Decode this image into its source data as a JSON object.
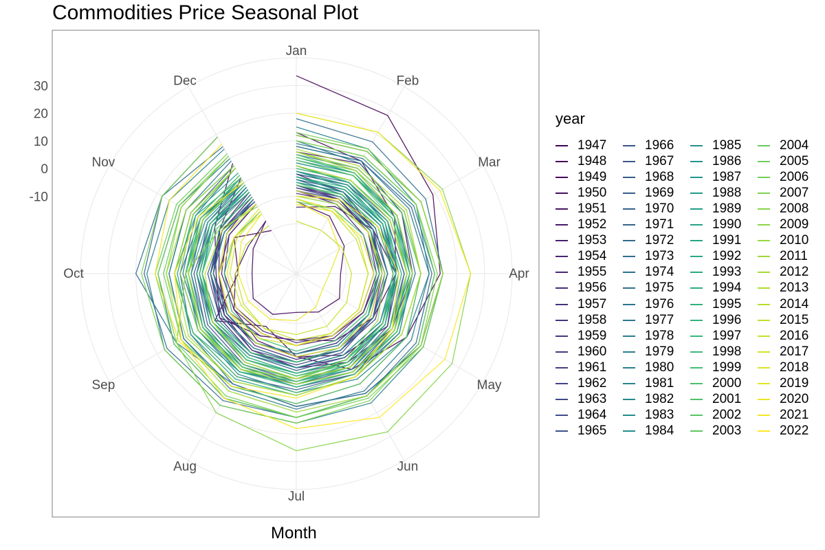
{
  "title": "Commodities Price Seasonal Plot",
  "chart_data": {
    "type": "line",
    "coordinate_system": "polar",
    "title": "Commodities Price Seasonal Plot",
    "xlabel": "Month",
    "ylabel": "",
    "months": [
      "Jan",
      "Feb",
      "Mar",
      "Apr",
      "May",
      "Jun",
      "Jul",
      "Aug",
      "Sep",
      "Oct",
      "Nov",
      "Dec"
    ],
    "radial_ticks": [
      "30",
      "20",
      "10",
      "0",
      "-10"
    ],
    "radial_tick_values": [
      30,
      20,
      10,
      0,
      -10
    ],
    "radial_range": [
      -38,
      42
    ],
    "grid": true,
    "legend_title": "year",
    "legend_position": "right",
    "color_scale": "viridis",
    "series": [
      {
        "name": "1947",
        "values": [
          33.5,
          28,
          19,
          14,
          8,
          2,
          -8,
          -16,
          -4,
          -17,
          -12,
          -20
        ]
      },
      {
        "name": "1948",
        "values": [
          13,
          9,
          3,
          -2,
          -6,
          -10,
          -14,
          -12,
          -6,
          -9,
          -4,
          8
        ]
      },
      {
        "name": "1949",
        "values": [
          -12,
          -14,
          -18,
          -22,
          -20,
          -22,
          -24,
          -21,
          -20,
          -22,
          -20,
          -16
        ]
      },
      {
        "name": "1950",
        "values": [
          -14,
          -10,
          -6,
          -2,
          0,
          -4,
          -8,
          -10,
          -12,
          -16,
          -18,
          -16
        ]
      },
      {
        "name": "1951",
        "values": [
          6,
          8,
          6,
          4,
          2,
          -1,
          -4,
          -6,
          -8,
          -10,
          -6,
          2
        ]
      },
      {
        "name": "1952",
        "values": [
          -2,
          -4,
          -6,
          -8,
          -10,
          -12,
          -14,
          -12,
          -10,
          -8,
          -6,
          -4
        ]
      },
      {
        "name": "1953",
        "values": [
          -6,
          -7,
          -8,
          -9,
          -10,
          -11,
          -12,
          -13,
          -12,
          -11,
          -9,
          -7
        ]
      },
      {
        "name": "1954",
        "values": [
          -8,
          -9,
          -10,
          -10,
          -11,
          -12,
          -13,
          -14,
          -13,
          -12,
          -10,
          -9
        ]
      },
      {
        "name": "1955",
        "values": [
          -9,
          -8,
          -7,
          -7,
          -6,
          -6,
          -7,
          -8,
          -9,
          -10,
          -10,
          -9
        ]
      },
      {
        "name": "1956",
        "values": [
          -5,
          -4,
          -3,
          -3,
          -2,
          -3,
          -4,
          -5,
          -6,
          -7,
          -6,
          -5
        ]
      },
      {
        "name": "1957",
        "values": [
          -4,
          -5,
          -6,
          -7,
          -8,
          -8,
          -9,
          -9,
          -8,
          -7,
          -6,
          -5
        ]
      },
      {
        "name": "1958",
        "values": [
          -7,
          -6,
          -6,
          -5,
          -6,
          -7,
          -8,
          -9,
          -9,
          -8,
          -8,
          -7
        ]
      },
      {
        "name": "1959",
        "values": [
          -6,
          -6,
          -5,
          -5,
          -5,
          -6,
          -6,
          -7,
          -7,
          -7,
          -7,
          -6
        ]
      },
      {
        "name": "1960",
        "values": [
          -6,
          -7,
          -7,
          -8,
          -8,
          -9,
          -9,
          -9,
          -9,
          -8,
          -7,
          -6
        ]
      },
      {
        "name": "1961",
        "values": [
          -8,
          -8,
          -7,
          -7,
          -7,
          -6,
          -6,
          -6,
          -7,
          -7,
          -8,
          -8
        ]
      },
      {
        "name": "1962",
        "values": [
          -7,
          -7,
          -8,
          -8,
          -8,
          -9,
          -9,
          -9,
          -8,
          -8,
          -7,
          -7
        ]
      },
      {
        "name": "1963",
        "values": [
          -8,
          -7,
          -7,
          -6,
          -6,
          -5,
          -5,
          -5,
          -6,
          -6,
          -7,
          -8
        ]
      },
      {
        "name": "1964",
        "values": [
          -4,
          -3,
          -2,
          -1,
          0,
          1,
          1,
          0,
          -1,
          -2,
          -3,
          -4
        ]
      },
      {
        "name": "1965",
        "values": [
          -2,
          -1,
          0,
          1,
          2,
          3,
          2,
          1,
          0,
          -1,
          -2,
          -2
        ]
      },
      {
        "name": "1966",
        "values": [
          2,
          3,
          4,
          4,
          5,
          4,
          3,
          2,
          1,
          0,
          1,
          2
        ]
      },
      {
        "name": "1967",
        "values": [
          1,
          0,
          -1,
          -2,
          -2,
          -3,
          -3,
          -4,
          -3,
          -2,
          -1,
          0
        ]
      },
      {
        "name": "1968",
        "values": [
          -3,
          -3,
          -2,
          -2,
          -1,
          -1,
          -2,
          -2,
          -3,
          -3,
          -3,
          -3
        ]
      },
      {
        "name": "1969",
        "values": [
          -1,
          0,
          1,
          2,
          3,
          4,
          4,
          5,
          5,
          6,
          6,
          7
        ]
      },
      {
        "name": "1970",
        "values": [
          6,
          5,
          4,
          3,
          2,
          1,
          0,
          -1,
          -2,
          -3,
          -3,
          -2
        ]
      },
      {
        "name": "1971",
        "values": [
          -2,
          -1,
          0,
          1,
          1,
          2,
          2,
          3,
          3,
          4,
          5,
          6
        ]
      },
      {
        "name": "1972",
        "values": [
          8,
          9,
          10,
          11,
          12,
          13,
          14,
          15,
          16,
          17,
          18,
          19
        ]
      },
      {
        "name": "1973",
        "values": [
          18,
          17,
          16,
          15,
          14,
          12,
          10,
          8,
          6,
          4,
          2,
          0
        ]
      },
      {
        "name": "1974",
        "values": [
          12,
          13,
          14,
          15,
          14,
          12,
          10,
          8,
          12,
          20,
          18,
          15
        ]
      },
      {
        "name": "1975",
        "values": [
          10,
          8,
          6,
          5,
          4,
          3,
          2,
          1,
          2,
          3,
          4,
          6
        ]
      },
      {
        "name": "1976",
        "values": [
          5,
          6,
          7,
          7,
          8,
          8,
          9,
          9,
          9,
          8,
          8,
          7
        ]
      },
      {
        "name": "1977",
        "values": [
          8,
          9,
          9,
          10,
          10,
          11,
          11,
          10,
          9,
          8,
          8,
          9
        ]
      },
      {
        "name": "1978",
        "values": [
          9,
          10,
          11,
          12,
          13,
          13,
          14,
          14,
          13,
          12,
          11,
          10
        ]
      },
      {
        "name": "1979",
        "values": [
          12,
          13,
          14,
          15,
          15,
          16,
          16,
          17,
          17,
          16,
          15,
          14
        ]
      },
      {
        "name": "1980",
        "values": [
          15,
          14,
          12,
          10,
          8,
          6,
          5,
          4,
          3,
          2,
          2,
          1
        ]
      },
      {
        "name": "1981",
        "values": [
          1,
          0,
          -1,
          -2,
          -3,
          -4,
          -4,
          -5,
          -5,
          -4,
          -3,
          -2
        ]
      },
      {
        "name": "1982",
        "values": [
          -3,
          -4,
          -5,
          -5,
          -6,
          -6,
          -6,
          -7,
          -7,
          -7,
          -6,
          -5
        ]
      },
      {
        "name": "1983",
        "values": [
          -5,
          -4,
          -3,
          -2,
          -1,
          0,
          1,
          1,
          2,
          2,
          3,
          3
        ]
      },
      {
        "name": "1984",
        "values": [
          3,
          4,
          4,
          4,
          3,
          3,
          2,
          2,
          1,
          1,
          0,
          0
        ]
      },
      {
        "name": "1985",
        "values": [
          -1,
          -2,
          -2,
          -3,
          -3,
          -4,
          -4,
          -4,
          -4,
          -4,
          -3,
          -3
        ]
      },
      {
        "name": "1986",
        "values": [
          -4,
          -5,
          -6,
          -7,
          -8,
          -8,
          -9,
          -9,
          -9,
          -8,
          -8,
          -7
        ]
      },
      {
        "name": "1987",
        "values": [
          -6,
          -5,
          -4,
          -3,
          -2,
          -1,
          0,
          0,
          1,
          1,
          1,
          2
        ]
      },
      {
        "name": "1988",
        "values": [
          2,
          3,
          3,
          4,
          5,
          5,
          6,
          6,
          6,
          5,
          5,
          4
        ]
      },
      {
        "name": "1989",
        "values": [
          4,
          4,
          3,
          3,
          2,
          2,
          1,
          1,
          0,
          0,
          -1,
          -1
        ]
      },
      {
        "name": "1990",
        "values": [
          -1,
          -1,
          -2,
          -2,
          -1,
          0,
          1,
          3,
          5,
          6,
          4,
          2
        ]
      },
      {
        "name": "1991",
        "values": [
          1,
          0,
          -1,
          -1,
          -2,
          -2,
          -2,
          -3,
          -3,
          -3,
          -3,
          -3
        ]
      },
      {
        "name": "1992",
        "values": [
          -3,
          -3,
          -2,
          -2,
          -2,
          -1,
          -1,
          -2,
          -2,
          -2,
          -2,
          -3
        ]
      },
      {
        "name": "1993",
        "values": [
          -3,
          -3,
          -3,
          -2,
          -2,
          -2,
          -2,
          -2,
          -3,
          -3,
          -3,
          -3
        ]
      },
      {
        "name": "1994",
        "values": [
          -3,
          -2,
          -1,
          0,
          1,
          1,
          2,
          2,
          2,
          2,
          2,
          2
        ]
      },
      {
        "name": "1995",
        "values": [
          3,
          3,
          4,
          4,
          4,
          3,
          3,
          2,
          2,
          1,
          1,
          0
        ]
      },
      {
        "name": "1996",
        "values": [
          0,
          1,
          2,
          2,
          3,
          3,
          3,
          3,
          2,
          2,
          1,
          1
        ]
      },
      {
        "name": "1997",
        "values": [
          1,
          0,
          0,
          -1,
          -1,
          -2,
          -2,
          -3,
          -3,
          -4,
          -4,
          -4
        ]
      },
      {
        "name": "1998",
        "values": [
          -5,
          -6,
          -7,
          -8,
          -9,
          -10,
          -10,
          -11,
          -11,
          -12,
          -12,
          -12
        ]
      },
      {
        "name": "1999",
        "values": [
          -12,
          -11,
          -10,
          -9,
          -8,
          -7,
          -6,
          -5,
          -4,
          -3,
          -2,
          -1
        ]
      },
      {
        "name": "2000",
        "values": [
          0,
          1,
          2,
          3,
          4,
          4,
          5,
          5,
          5,
          6,
          6,
          6
        ]
      },
      {
        "name": "2001",
        "values": [
          5,
          4,
          3,
          2,
          1,
          0,
          -1,
          -2,
          -3,
          -4,
          -5,
          -6
        ]
      },
      {
        "name": "2002",
        "values": [
          -6,
          -5,
          -4,
          -3,
          -2,
          -1,
          0,
          0,
          1,
          1,
          2,
          2
        ]
      },
      {
        "name": "2003",
        "values": [
          3,
          3,
          2,
          2,
          2,
          1,
          1,
          1,
          2,
          2,
          3,
          3
        ]
      },
      {
        "name": "2004",
        "values": [
          4,
          5,
          6,
          7,
          8,
          8,
          9,
          9,
          10,
          10,
          10,
          11
        ]
      },
      {
        "name": "2005",
        "values": [
          10,
          11,
          12,
          12,
          13,
          13,
          14,
          14,
          13,
          13,
          12,
          12
        ]
      },
      {
        "name": "2006",
        "values": [
          13,
          14,
          14,
          15,
          15,
          14,
          14,
          13,
          12,
          12,
          11,
          11
        ]
      },
      {
        "name": "2007",
        "values": [
          10,
          11,
          12,
          13,
          14,
          15,
          16,
          17,
          17,
          18,
          18,
          19
        ]
      },
      {
        "name": "2008",
        "values": [
          20,
          21,
          23,
          25,
          27,
          28,
          26,
          20,
          12,
          2,
          -6,
          -10
        ]
      },
      {
        "name": "2009",
        "values": [
          -10,
          -9,
          -8,
          -6,
          -4,
          -2,
          0,
          2,
          3,
          4,
          5,
          6
        ]
      },
      {
        "name": "2010",
        "values": [
          6,
          6,
          7,
          7,
          6,
          5,
          6,
          7,
          8,
          9,
          10,
          11
        ]
      },
      {
        "name": "2011",
        "values": [
          12,
          13,
          14,
          15,
          14,
          13,
          12,
          11,
          10,
          9,
          8,
          7
        ]
      },
      {
        "name": "2012",
        "values": [
          7,
          7,
          8,
          7,
          6,
          5,
          6,
          7,
          7,
          6,
          6,
          6
        ]
      },
      {
        "name": "2013",
        "values": [
          6,
          5,
          4,
          4,
          3,
          3,
          2,
          2,
          2,
          1,
          1,
          1
        ]
      },
      {
        "name": "2014",
        "values": [
          1,
          1,
          1,
          2,
          2,
          1,
          0,
          -1,
          -3,
          -5,
          -7,
          -9
        ]
      },
      {
        "name": "2015",
        "values": [
          -11,
          -12,
          -13,
          -12,
          -12,
          -13,
          -14,
          -15,
          -16,
          -16,
          -17,
          -18
        ]
      },
      {
        "name": "2016",
        "values": [
          -19,
          -20,
          -19,
          -18,
          -17,
          -16,
          -16,
          -15,
          -15,
          -14,
          -13,
          -12
        ]
      },
      {
        "name": "2017",
        "values": [
          -11,
          -11,
          -12,
          -12,
          -12,
          -13,
          -12,
          -11,
          -10,
          -10,
          -9,
          -9
        ]
      },
      {
        "name": "2018",
        "values": [
          -8,
          -8,
          -8,
          -7,
          -7,
          -7,
          -8,
          -9,
          -10,
          -10,
          -12,
          -13
        ]
      },
      {
        "name": "2019",
        "values": [
          -13,
          -12,
          -11,
          -10,
          -11,
          -12,
          -12,
          -13,
          -13,
          -13,
          -12,
          -11
        ]
      },
      {
        "name": "2020",
        "values": [
          -12,
          -15,
          -20,
          -26,
          -27,
          -24,
          -21,
          -19,
          -18,
          -17,
          -15,
          -13
        ]
      },
      {
        "name": "2021",
        "values": [
          -10,
          -7,
          -4,
          -1,
          2,
          5,
          7,
          9,
          11,
          13,
          15,
          16
        ]
      },
      {
        "name": "2022",
        "values": [
          20,
          21,
          22,
          25,
          24,
          22,
          18,
          14,
          10,
          6,
          3,
          0
        ]
      }
    ]
  }
}
